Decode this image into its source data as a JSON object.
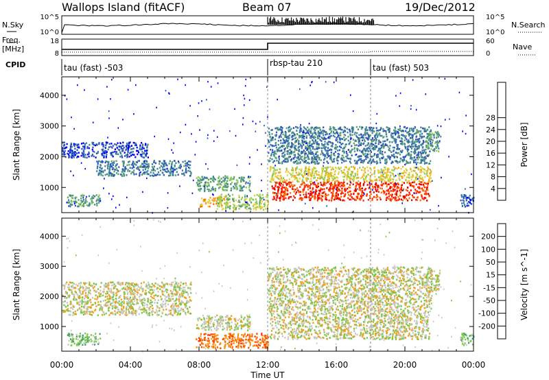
{
  "header": {
    "title": "Wallops Island (fitACF)",
    "beam": "Beam 07",
    "date": "19/Dec/2012"
  },
  "strip_labels": {
    "nsky": "N.Sky",
    "nsearch": "N.Search",
    "freq": "Freq.",
    "freq_unit": "[MHz]",
    "nave": "Nave",
    "cpid": "CPID"
  },
  "noise_axis": {
    "left": [
      "10^5",
      "10^0"
    ],
    "right": [
      "10^5",
      "10^0"
    ]
  },
  "freq_axis": {
    "left": [
      "18",
      "8"
    ],
    "right": [
      "60",
      "0"
    ]
  },
  "cpid_segments": [
    {
      "label": "tau (fast) -503",
      "start": 0,
      "end": 12
    },
    {
      "label": "rbsp-tau 210",
      "start": 12,
      "end": 18
    },
    {
      "label": "tau (fast) 503",
      "start": 18,
      "end": 24
    }
  ],
  "chart_data": [
    {
      "type": "heatmap",
      "title": "",
      "ylabel": "Slant Range [km]",
      "xlabel": "Time UT",
      "xlim": [
        0,
        24
      ],
      "ylim": [
        180,
        4600
      ],
      "x_ticks": [
        "00:00",
        "04:00",
        "08:00",
        "12:00",
        "16:00",
        "20:00",
        "00:00"
      ],
      "y_ticks": [
        1000,
        2000,
        3000,
        4000
      ],
      "colorbar": {
        "label": "Power [dB]",
        "ticks": [
          "4",
          "8",
          "12",
          "16",
          "20",
          "24",
          "28"
        ],
        "colors": [
          "#0000ff",
          "#2a52b8",
          "#3c7fa0",
          "#5aa06e",
          "#8ccd5a",
          "#e8d23c",
          "#f5a623",
          "#ff6a00",
          "#ff2800",
          "#e60000"
        ]
      },
      "regions": [
        {
          "t0": 0.3,
          "t1": 2.2,
          "r0": 400,
          "r1": 800,
          "level": 3
        },
        {
          "t0": 0.0,
          "t1": 5.0,
          "r0": 2000,
          "r1": 2500,
          "level": 1
        },
        {
          "t0": 2.0,
          "t1": 7.5,
          "r0": 1400,
          "r1": 1900,
          "level": 2
        },
        {
          "t0": 7.8,
          "t1": 11.0,
          "r0": 900,
          "r1": 1400,
          "level": 3
        },
        {
          "t0": 8.0,
          "t1": 9.5,
          "r0": 400,
          "r1": 700,
          "level": 6
        },
        {
          "t0": 9.0,
          "t1": 12.0,
          "r0": 300,
          "r1": 800,
          "level": 4
        },
        {
          "t0": 12.0,
          "t1": 21.5,
          "r0": 1800,
          "r1": 3000,
          "level": 2
        },
        {
          "t0": 12.1,
          "t1": 21.5,
          "r0": 1200,
          "r1": 1700,
          "level": 5
        },
        {
          "t0": 12.2,
          "t1": 21.4,
          "r0": 600,
          "r1": 1200,
          "level": 8
        },
        {
          "t0": 21.2,
          "t1": 22.0,
          "r0": 2200,
          "r1": 2900,
          "level": 3
        },
        {
          "t0": 23.2,
          "t1": 24.0,
          "r0": 400,
          "r1": 800,
          "level": 1
        }
      ]
    },
    {
      "type": "heatmap",
      "title": "",
      "ylabel": "Slant Range [km]",
      "xlabel": "Time UT",
      "xlim": [
        0,
        24
      ],
      "ylim": [
        180,
        4600
      ],
      "x_ticks": [
        "00:00",
        "04:00",
        "08:00",
        "12:00",
        "16:00",
        "20:00",
        "00:00"
      ],
      "y_ticks": [
        1000,
        2000,
        3000,
        4000
      ],
      "colorbar": {
        "label": "Velocity [m s^-1]",
        "ticks": [
          "200",
          "100",
          "50",
          "15",
          "-15",
          "-50",
          "-100",
          "-200"
        ],
        "colors": [
          "#1a1ad2",
          "#2e6cb4",
          "#3c9c78",
          "#78c846",
          "#c8c8c0",
          "#f0a020",
          "#ff7800",
          "#ff3c00",
          "#e60000"
        ]
      },
      "regions": [
        {
          "t0": 0.3,
          "t1": 2.2,
          "r0": 400,
          "r1": 800,
          "level": 3
        },
        {
          "t0": 0.0,
          "t1": 7.5,
          "r0": 1400,
          "r1": 2500,
          "level": 4
        },
        {
          "t0": 7.8,
          "t1": 11.0,
          "r0": 900,
          "r1": 1400,
          "level": 4
        },
        {
          "t0": 7.8,
          "t1": 12.0,
          "r0": 300,
          "r1": 800,
          "level": 6
        },
        {
          "t0": 12.0,
          "t1": 21.5,
          "r0": 1500,
          "r1": 3000,
          "level": 4
        },
        {
          "t0": 12.1,
          "t1": 21.4,
          "r0": 600,
          "r1": 1500,
          "level": 4
        },
        {
          "t0": 21.0,
          "t1": 22.0,
          "r0": 2200,
          "r1": 2900,
          "level": 4
        },
        {
          "t0": 23.2,
          "t1": 24.0,
          "r0": 400,
          "r1": 800,
          "level": 3
        }
      ]
    }
  ]
}
